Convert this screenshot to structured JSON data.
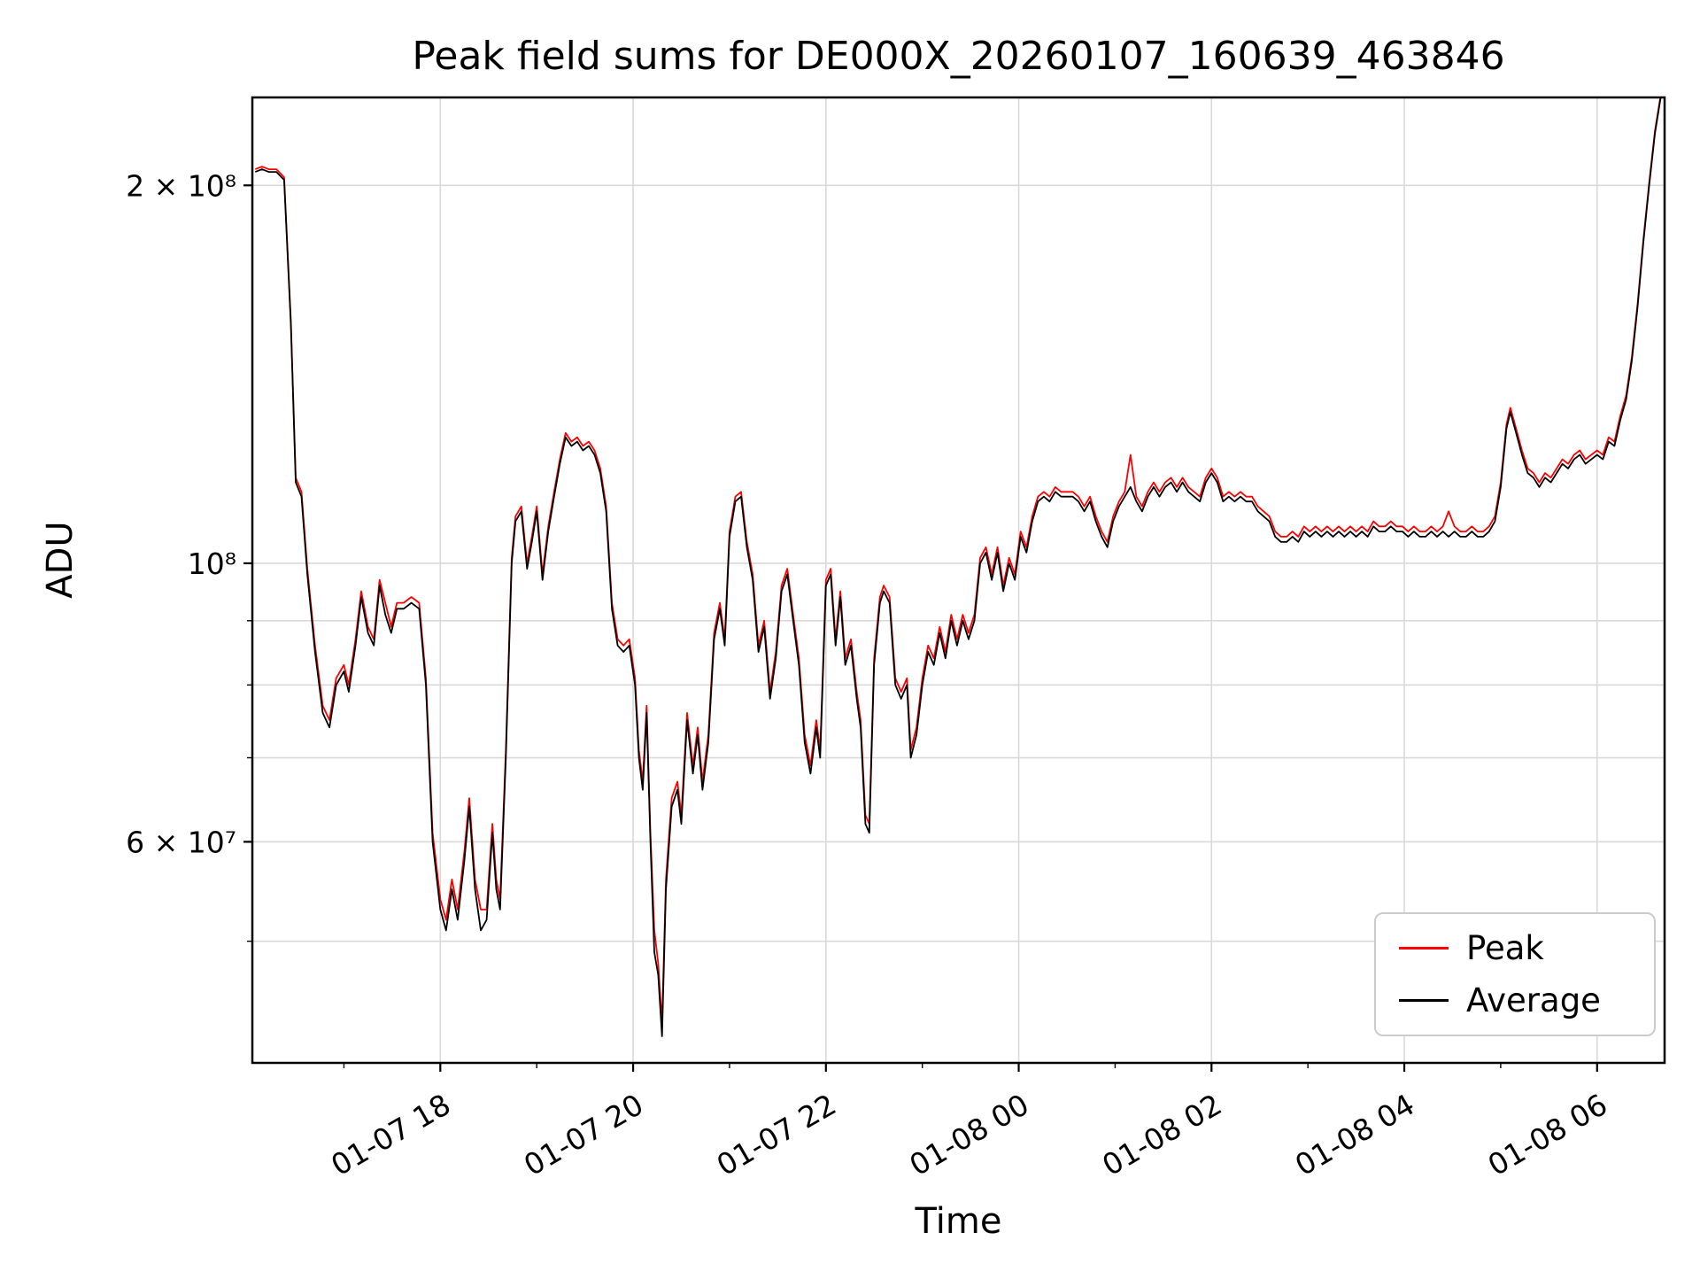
{
  "figure": {
    "title": "Peak field sums for DE000X_20260107_160639_463846",
    "xlabel": "Time",
    "ylabel": "ADU"
  },
  "legend": {
    "entries": [
      {
        "label": "Peak",
        "color": "#ff0000"
      },
      {
        "label": "Average",
        "color": "#000000"
      }
    ]
  },
  "chart_data": {
    "type": "line",
    "title": "Peak field sums for DE000X_20260107_160639_463846",
    "xlabel": "Time",
    "ylabel": "ADU",
    "yscale": "log",
    "grid": true,
    "legend_position": "lower right",
    "x_unit": "hours since 2026-01-07 00:00",
    "value_unit": "ADU",
    "value_multiplier": 1000000,
    "xlim": [
      16.05,
      30.7
    ],
    "ylim": [
      40000000,
      235000000
    ],
    "x_ticks": {
      "positions": [
        18,
        20,
        22,
        24,
        26,
        28,
        30
      ],
      "labels": [
        "01-07 18",
        "01-07 20",
        "01-07 22",
        "01-08 00",
        "01-08 02",
        "01-08 04",
        "01-08 06"
      ]
    },
    "x_minor_ticks": [
      17,
      19,
      21,
      23,
      25,
      27,
      29
    ],
    "y_ticks": {
      "values": [
        60000000,
        100000000,
        200000000
      ],
      "labels": [
        "6 × 10⁷",
        "10⁸",
        "2 × 10⁸"
      ]
    },
    "y_minor_grid": [
      50000000,
      60000000,
      70000000,
      80000000,
      90000000,
      100000000,
      200000000
    ],
    "series_names": [
      "Peak",
      "Average"
    ],
    "series_colors": [
      "#ff0000",
      "#000000"
    ],
    "columns": [
      "hours",
      "average",
      "peak"
    ],
    "points": [
      [
        16.08,
        205,
        206
      ],
      [
        16.15,
        206,
        207
      ],
      [
        16.22,
        205,
        206
      ],
      [
        16.3,
        205,
        206
      ],
      [
        16.38,
        202,
        203
      ],
      [
        16.45,
        155,
        156
      ],
      [
        16.5,
        116,
        117
      ],
      [
        16.56,
        113,
        114
      ],
      [
        16.62,
        98,
        99
      ],
      [
        16.7,
        85,
        86
      ],
      [
        16.78,
        76,
        77
      ],
      [
        16.85,
        74,
        75
      ],
      [
        16.92,
        80,
        81
      ],
      [
        17.0,
        82,
        83
      ],
      [
        17.05,
        79,
        80
      ],
      [
        17.12,
        86,
        87
      ],
      [
        17.18,
        94,
        95
      ],
      [
        17.25,
        88,
        89
      ],
      [
        17.31,
        86,
        87
      ],
      [
        17.37,
        96,
        97
      ],
      [
        17.43,
        91,
        93
      ],
      [
        17.49,
        88,
        89
      ],
      [
        17.55,
        92,
        93
      ],
      [
        17.62,
        92,
        93
      ],
      [
        17.7,
        93,
        94
      ],
      [
        17.78,
        92,
        93
      ],
      [
        17.85,
        80,
        81
      ],
      [
        17.92,
        60,
        61
      ],
      [
        18.0,
        53,
        54
      ],
      [
        18.06,
        51,
        52
      ],
      [
        18.12,
        55,
        56
      ],
      [
        18.18,
        52,
        53
      ],
      [
        18.25,
        58,
        59
      ],
      [
        18.3,
        64,
        65
      ],
      [
        18.36,
        55,
        56
      ],
      [
        18.42,
        51,
        53
      ],
      [
        18.48,
        52,
        53
      ],
      [
        18.54,
        61,
        62
      ],
      [
        18.58,
        55,
        56
      ],
      [
        18.62,
        53,
        54
      ],
      [
        18.68,
        70,
        71
      ],
      [
        18.74,
        100,
        101
      ],
      [
        18.78,
        108,
        109
      ],
      [
        18.84,
        110,
        111
      ],
      [
        18.9,
        99,
        100
      ],
      [
        18.95,
        104,
        105
      ],
      [
        19.0,
        110,
        111
      ],
      [
        19.06,
        97,
        98
      ],
      [
        19.12,
        106,
        107
      ],
      [
        19.18,
        113,
        114
      ],
      [
        19.24,
        120,
        121
      ],
      [
        19.3,
        126,
        127
      ],
      [
        19.36,
        124,
        125
      ],
      [
        19.42,
        125,
        126
      ],
      [
        19.48,
        123,
        124
      ],
      [
        19.54,
        124,
        125
      ],
      [
        19.6,
        122,
        123
      ],
      [
        19.66,
        118,
        119
      ],
      [
        19.72,
        110,
        111
      ],
      [
        19.78,
        92,
        93
      ],
      [
        19.84,
        86,
        87
      ],
      [
        19.9,
        85,
        86
      ],
      [
        19.96,
        86,
        87
      ],
      [
        20.02,
        80,
        81
      ],
      [
        20.06,
        70,
        71
      ],
      [
        20.1,
        66,
        67
      ],
      [
        20.14,
        76,
        77
      ],
      [
        20.18,
        60,
        61
      ],
      [
        20.22,
        49,
        51
      ],
      [
        20.26,
        47,
        48
      ],
      [
        20.3,
        42,
        43
      ],
      [
        20.34,
        55,
        56
      ],
      [
        20.4,
        64,
        65
      ],
      [
        20.46,
        66,
        67
      ],
      [
        20.5,
        62,
        63
      ],
      [
        20.56,
        75,
        76
      ],
      [
        20.62,
        68,
        69
      ],
      [
        20.67,
        73,
        74
      ],
      [
        20.72,
        66,
        67
      ],
      [
        20.78,
        72,
        73
      ],
      [
        20.84,
        87,
        88
      ],
      [
        20.9,
        92,
        93
      ],
      [
        20.95,
        86,
        87
      ],
      [
        21.0,
        105,
        106
      ],
      [
        21.06,
        112,
        113
      ],
      [
        21.12,
        113,
        114
      ],
      [
        21.18,
        103,
        104
      ],
      [
        21.24,
        97,
        98
      ],
      [
        21.3,
        85,
        86
      ],
      [
        21.36,
        89,
        90
      ],
      [
        21.42,
        78,
        79
      ],
      [
        21.48,
        84,
        85
      ],
      [
        21.54,
        95,
        96
      ],
      [
        21.6,
        98,
        99
      ],
      [
        21.66,
        90,
        91
      ],
      [
        21.72,
        83,
        84
      ],
      [
        21.78,
        72,
        73
      ],
      [
        21.84,
        68,
        69
      ],
      [
        21.9,
        74,
        75
      ],
      [
        21.94,
        70,
        71
      ],
      [
        22.0,
        96,
        97
      ],
      [
        22.05,
        98,
        99
      ],
      [
        22.1,
        86,
        87
      ],
      [
        22.15,
        94,
        95
      ],
      [
        22.2,
        83,
        84
      ],
      [
        22.26,
        86,
        87
      ],
      [
        22.32,
        78,
        79
      ],
      [
        22.36,
        74,
        75
      ],
      [
        22.41,
        62,
        63
      ],
      [
        22.45,
        61,
        62
      ],
      [
        22.5,
        83,
        84
      ],
      [
        22.56,
        93,
        94
      ],
      [
        22.6,
        95,
        96
      ],
      [
        22.66,
        93,
        94
      ],
      [
        22.72,
        80,
        81
      ],
      [
        22.78,
        78,
        79
      ],
      [
        22.84,
        80,
        81
      ],
      [
        22.88,
        70,
        71
      ],
      [
        22.94,
        73,
        74
      ],
      [
        23.0,
        80,
        81
      ],
      [
        23.06,
        85,
        86
      ],
      [
        23.12,
        83,
        84
      ],
      [
        23.18,
        88,
        89
      ],
      [
        23.24,
        84,
        85
      ],
      [
        23.3,
        90,
        91
      ],
      [
        23.36,
        86,
        87
      ],
      [
        23.42,
        90,
        91
      ],
      [
        23.48,
        87,
        88
      ],
      [
        23.54,
        90,
        91
      ],
      [
        23.6,
        100,
        101
      ],
      [
        23.66,
        102,
        103
      ],
      [
        23.72,
        97,
        98
      ],
      [
        23.78,
        102,
        103
      ],
      [
        23.84,
        95,
        96
      ],
      [
        23.9,
        100,
        101
      ],
      [
        23.96,
        97,
        98
      ],
      [
        24.02,
        105,
        106
      ],
      [
        24.08,
        102,
        103
      ],
      [
        24.14,
        108,
        109
      ],
      [
        24.2,
        112,
        113
      ],
      [
        24.26,
        113,
        114
      ],
      [
        24.32,
        112,
        113
      ],
      [
        24.38,
        114,
        115
      ],
      [
        24.44,
        113,
        114
      ],
      [
        24.5,
        113,
        114
      ],
      [
        24.56,
        113,
        114
      ],
      [
        24.62,
        112,
        113
      ],
      [
        24.68,
        110,
        111
      ],
      [
        24.74,
        112,
        113
      ],
      [
        24.8,
        108,
        109
      ],
      [
        24.86,
        105,
        106
      ],
      [
        24.92,
        103,
        104
      ],
      [
        24.98,
        108,
        109
      ],
      [
        25.04,
        111,
        112
      ],
      [
        25.1,
        113,
        114
      ],
      [
        25.16,
        115,
        122
      ],
      [
        25.22,
        112,
        113
      ],
      [
        25.28,
        110,
        111
      ],
      [
        25.34,
        113,
        114
      ],
      [
        25.4,
        115,
        116
      ],
      [
        25.46,
        113,
        114
      ],
      [
        25.52,
        115,
        116
      ],
      [
        25.58,
        116,
        117
      ],
      [
        25.64,
        114,
        115
      ],
      [
        25.7,
        116,
        117
      ],
      [
        25.76,
        114,
        115
      ],
      [
        25.82,
        113,
        114
      ],
      [
        25.88,
        112,
        113
      ],
      [
        25.94,
        116,
        117
      ],
      [
        26.0,
        118,
        119
      ],
      [
        26.06,
        116,
        117
      ],
      [
        26.12,
        112,
        113
      ],
      [
        26.18,
        113,
        114
      ],
      [
        26.24,
        112,
        113
      ],
      [
        26.3,
        113,
        114
      ],
      [
        26.36,
        112,
        113
      ],
      [
        26.42,
        112,
        113
      ],
      [
        26.48,
        110,
        111
      ],
      [
        26.54,
        109,
        110
      ],
      [
        26.6,
        108,
        109
      ],
      [
        26.66,
        105,
        106
      ],
      [
        26.72,
        104,
        105
      ],
      [
        26.78,
        104,
        105
      ],
      [
        26.84,
        105,
        106
      ],
      [
        26.9,
        104,
        105
      ],
      [
        26.96,
        106,
        107
      ],
      [
        27.02,
        105,
        106
      ],
      [
        27.08,
        106,
        107
      ],
      [
        27.14,
        105,
        106
      ],
      [
        27.2,
        106,
        107
      ],
      [
        27.26,
        105,
        106
      ],
      [
        27.32,
        106,
        107
      ],
      [
        27.38,
        105,
        106
      ],
      [
        27.44,
        106,
        107
      ],
      [
        27.5,
        105,
        106
      ],
      [
        27.56,
        106,
        107
      ],
      [
        27.62,
        105,
        106
      ],
      [
        27.68,
        107,
        108
      ],
      [
        27.74,
        106,
        107
      ],
      [
        27.8,
        106,
        107
      ],
      [
        27.86,
        107,
        108
      ],
      [
        27.92,
        106,
        107
      ],
      [
        27.98,
        106,
        107
      ],
      [
        28.04,
        105,
        106
      ],
      [
        28.1,
        106,
        107
      ],
      [
        28.16,
        105,
        106
      ],
      [
        28.22,
        105,
        106
      ],
      [
        28.28,
        106,
        107
      ],
      [
        28.34,
        105,
        106
      ],
      [
        28.4,
        106,
        107
      ],
      [
        28.46,
        105,
        110
      ],
      [
        28.52,
        106,
        107
      ],
      [
        28.58,
        105,
        106
      ],
      [
        28.64,
        105,
        106
      ],
      [
        28.7,
        106,
        107
      ],
      [
        28.76,
        105,
        106
      ],
      [
        28.82,
        105,
        106
      ],
      [
        28.88,
        106,
        107
      ],
      [
        28.94,
        108,
        109
      ],
      [
        29.0,
        115,
        116
      ],
      [
        29.06,
        128,
        129
      ],
      [
        29.1,
        132,
        133
      ],
      [
        29.16,
        127,
        128
      ],
      [
        29.22,
        122,
        123
      ],
      [
        29.28,
        118,
        119
      ],
      [
        29.34,
        117,
        118
      ],
      [
        29.4,
        115,
        116
      ],
      [
        29.46,
        117,
        118
      ],
      [
        29.52,
        116,
        117
      ],
      [
        29.58,
        118,
        119
      ],
      [
        29.64,
        120,
        121
      ],
      [
        29.7,
        119,
        120
      ],
      [
        29.76,
        121,
        122
      ],
      [
        29.82,
        122,
        123
      ],
      [
        29.88,
        120,
        121
      ],
      [
        29.94,
        121,
        122
      ],
      [
        30.0,
        122,
        123
      ],
      [
        30.06,
        121,
        122
      ],
      [
        30.12,
        125,
        126
      ],
      [
        30.18,
        124,
        125
      ],
      [
        30.24,
        130,
        131
      ],
      [
        30.3,
        135,
        136
      ],
      [
        30.36,
        145,
        146
      ],
      [
        30.42,
        160,
        161
      ],
      [
        30.48,
        180,
        181
      ],
      [
        30.54,
        200,
        201
      ],
      [
        30.6,
        220,
        221
      ],
      [
        30.66,
        235,
        236
      ]
    ]
  }
}
